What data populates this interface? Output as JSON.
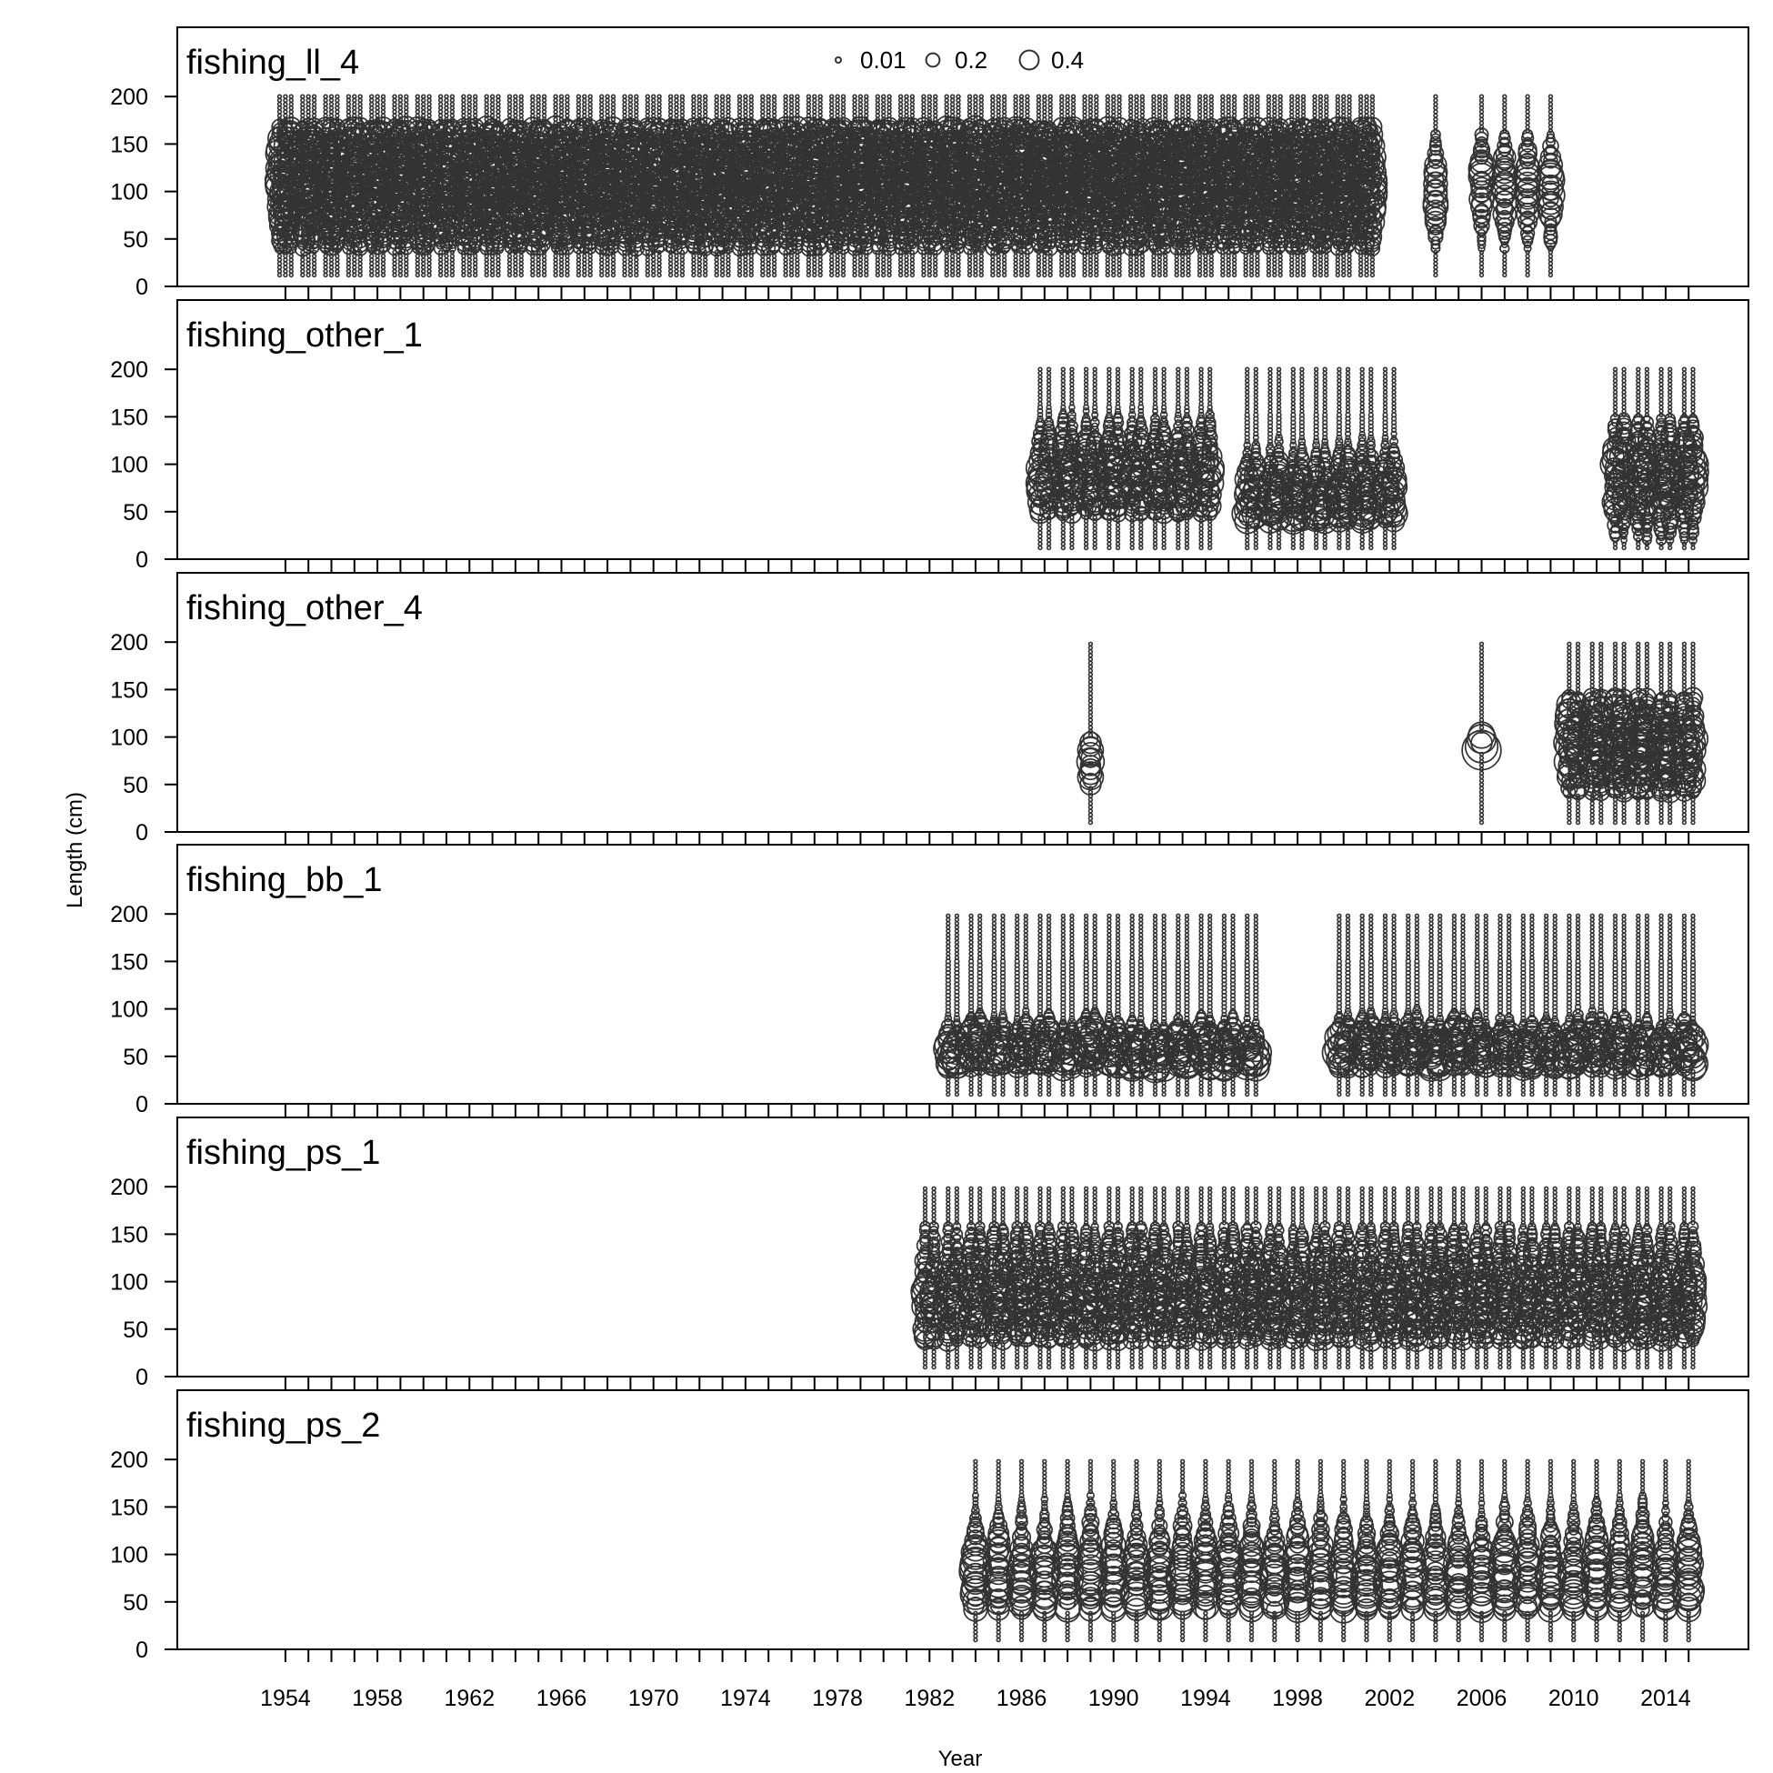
{
  "chart_data": {
    "type": "scatter",
    "subtype": "bubble",
    "xlabel": "Year",
    "ylabel": "Length (cm)",
    "x_ticks": [
      1954,
      1958,
      1962,
      1966,
      1970,
      1974,
      1978,
      1982,
      1986,
      1990,
      1994,
      1998,
      2002,
      2006,
      2010,
      2014
    ],
    "xlim": [
      1949.3,
      2017.6
    ],
    "y_ticks": [
      0,
      50,
      100,
      150,
      200
    ],
    "ylim": [
      0,
      250
    ],
    "legend": {
      "placement": "top-center",
      "sizes": [
        {
          "value": 0.01,
          "label": "0.01"
        },
        {
          "value": 0.2,
          "label": "0.2"
        },
        {
          "value": 0.4,
          "label": "0.4"
        }
      ]
    },
    "panels": [
      {
        "name": "fishing_ll_4",
        "years": [
          1954,
          1955,
          1956,
          1957,
          1958,
          1959,
          1960,
          1961,
          1962,
          1963,
          1964,
          1965,
          1966,
          1967,
          1968,
          1969,
          1970,
          1971,
          1972,
          1973,
          1974,
          1975,
          1976,
          1977,
          1978,
          1979,
          1980,
          1981,
          1982,
          1983,
          1984,
          1985,
          1986,
          1987,
          1988,
          1989,
          1990,
          1991,
          1992,
          1993,
          1994,
          1995,
          1996,
          1997,
          1998,
          1999,
          2000,
          2001,
          2004,
          2006,
          2007,
          2008,
          2009
        ],
        "groups": [
          {
            "years": [
              1954,
              1955,
              1956,
              1957,
              1958,
              1959,
              1960,
              1961,
              1962,
              1963,
              1964,
              1965,
              1966,
              1967,
              1968,
              1969,
              1970,
              1971,
              1972,
              1973,
              1974,
              1975,
              1976,
              1977,
              1978,
              1979,
              1980,
              1981,
              1982,
              1983,
              1984,
              1985,
              1986,
              1987,
              1988,
              1989,
              1990,
              1991,
              1992,
              1993,
              1994,
              1995,
              1996,
              1997,
              1998,
              1999,
              2000,
              2001
            ],
            "subs": 3,
            "center": 115,
            "spread": 42,
            "lmin": 12,
            "lmax": 200,
            "cmin": 40,
            "cmax": 170,
            "peak": 0.25
          },
          {
            "years": [
              2004,
              2006,
              2007,
              2008,
              2009
            ],
            "subs": 1,
            "center": 105,
            "spread": 30,
            "lmin": 12,
            "lmax": 200,
            "cmin": 40,
            "cmax": 160,
            "peak": 0.22
          }
        ]
      },
      {
        "name": "fishing_other_1",
        "years": [
          1987,
          1988,
          1989,
          1990,
          1991,
          1992,
          1993,
          1994,
          1996,
          1997,
          1998,
          1999,
          2000,
          2001,
          2002,
          2012,
          2013,
          2014,
          2015
        ],
        "groups": [
          {
            "years": [
              1987,
              1988,
              1989,
              1990,
              1991,
              1992,
              1993,
              1994
            ],
            "subs": 2,
            "center": 85,
            "spread": 28,
            "lmin": 12,
            "lmax": 200,
            "cmin": 45,
            "cmax": 160,
            "peak": 0.25
          },
          {
            "years": [
              1996,
              1997,
              1998,
              1999,
              2000,
              2001,
              2002
            ],
            "subs": 2,
            "center": 60,
            "spread": 25,
            "lmin": 12,
            "lmax": 200,
            "cmin": 40,
            "cmax": 155,
            "peak": 0.27
          },
          {
            "years": [
              2012,
              2013,
              2014,
              2015
            ],
            "subs": 2,
            "center": 85,
            "spread": 30,
            "lmin": 12,
            "lmax": 200,
            "cmin": 20,
            "cmax": 150,
            "peak": 0.27
          }
        ]
      },
      {
        "name": "fishing_other_4",
        "years": [
          1989,
          2006,
          2010,
          2011,
          2012,
          2013,
          2014,
          2015
        ],
        "groups": [
          {
            "years": [
              1989
            ],
            "subs": 1,
            "center": 80,
            "spread": 20,
            "lmin": 10,
            "lmax": 200,
            "cmin": 50,
            "cmax": 100,
            "peak": 0.25
          },
          {
            "years": [
              2006
            ],
            "subs": 1,
            "center": 95,
            "spread": 10,
            "lmin": 10,
            "lmax": 200,
            "cmin": 85,
            "cmax": 105,
            "peak": 0.45
          },
          {
            "years": [
              2010,
              2011,
              2012,
              2013,
              2014,
              2015
            ],
            "subs": 2,
            "center": 90,
            "spread": 35,
            "lmin": 10,
            "lmax": 200,
            "cmin": 40,
            "cmax": 145,
            "peak": 0.3
          }
        ]
      },
      {
        "name": "fishing_bb_1",
        "years": [
          1983,
          1984,
          1985,
          1986,
          1987,
          1988,
          1989,
          1990,
          1991,
          1992,
          1993,
          1994,
          1995,
          1996,
          2000,
          2001,
          2002,
          2003,
          2004,
          2005,
          2006,
          2007,
          2008,
          2009,
          2010,
          2011,
          2012,
          2013,
          2014,
          2015
        ],
        "groups": [
          {
            "years": [
              1983,
              1984,
              1985,
              1986,
              1987,
              1988,
              1989,
              1990,
              1991,
              1992,
              1993,
              1994,
              1995,
              1996,
              2000,
              2001,
              2002,
              2003,
              2004,
              2005,
              2006,
              2007,
              2008,
              2009,
              2010,
              2011,
              2012,
              2013,
              2014,
              2015
            ],
            "subs": 2,
            "center": 55,
            "spread": 15,
            "lmin": 10,
            "lmax": 200,
            "cmin": 35,
            "cmax": 150,
            "peak": 0.32
          }
        ]
      },
      {
        "name": "fishing_ps_1",
        "years": [
          1982,
          1983,
          1984,
          1985,
          1986,
          1987,
          1988,
          1989,
          1990,
          1991,
          1992,
          1993,
          1994,
          1995,
          1996,
          1997,
          1998,
          1999,
          2000,
          2001,
          2002,
          2003,
          2004,
          2005,
          2006,
          2007,
          2008,
          2009,
          2010,
          2011,
          2012,
          2013,
          2014,
          2015
        ],
        "groups": [
          {
            "years": [
              1982,
              1983,
              1984,
              1985,
              1986,
              1987,
              1988,
              1989,
              1990,
              1991,
              1992,
              1993,
              1994,
              1995,
              1996,
              1997,
              1998,
              1999,
              2000,
              2001,
              2002,
              2003,
              2004,
              2005,
              2006,
              2007,
              2008,
              2009,
              2010,
              2011,
              2012,
              2013,
              2014,
              2015
            ],
            "subs": 2,
            "center": 80,
            "spread": 38,
            "lmin": 10,
            "lmax": 200,
            "cmin": 35,
            "cmax": 160,
            "peak": 0.22
          }
        ]
      },
      {
        "name": "fishing_ps_2",
        "years": [
          1984,
          1985,
          1986,
          1987,
          1988,
          1989,
          1990,
          1991,
          1992,
          1993,
          1994,
          1995,
          1996,
          1997,
          1998,
          1999,
          2000,
          2001,
          2002,
          2003,
          2004,
          2005,
          2006,
          2007,
          2008,
          2009,
          2010,
          2011,
          2012,
          2013,
          2014,
          2015
        ],
        "groups": [
          {
            "years": [
              1984,
              1985,
              1986,
              1987,
              1988,
              1989,
              1990,
              1991,
              1992,
              1993,
              1994,
              1995,
              1996,
              1997,
              1998,
              1999,
              2000,
              2001,
              2002,
              2003,
              2004,
              2005,
              2006,
              2007,
              2008,
              2009,
              2010,
              2011,
              2012,
              2013,
              2014,
              2015
            ],
            "subs": 1,
            "center": 75,
            "spread": 33,
            "lmin": 10,
            "lmax": 200,
            "cmin": 40,
            "cmax": 165,
            "peak": 0.3
          }
        ]
      }
    ]
  }
}
